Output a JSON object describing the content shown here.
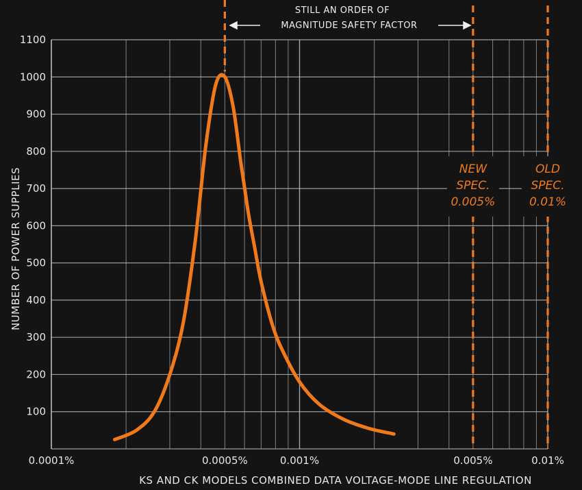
{
  "chart_data": {
    "type": "line",
    "title": "",
    "xlabel": "KS AND CK MODELS COMBINED DATA VOLTAGE-MODE LINE REGULATION",
    "ylabel": "NUMBER OF POWER SUPPLIES",
    "xscale": "log",
    "xlim": [
      0.0001,
      0.01
    ],
    "ylim": [
      0,
      1100
    ],
    "grid": true,
    "x_tick_labels": [
      "0.0001%",
      "0.0005%",
      "0.001%",
      "0.005%",
      "0.01%"
    ],
    "x_ticks": [
      0.0001,
      0.0005,
      0.001,
      0.005,
      0.01
    ],
    "y_ticks": [
      100,
      200,
      300,
      400,
      500,
      600,
      700,
      800,
      900,
      1000,
      1100
    ],
    "series": [
      {
        "color": "#f07a1a",
        "x": [
          0.00018,
          0.00022,
          0.00026,
          0.0003,
          0.00034,
          0.00038,
          0.00042,
          0.00046,
          0.0005,
          0.00054,
          0.00058,
          0.00062,
          0.00066,
          0.0007,
          0.00078,
          0.00086,
          0.001,
          0.0012,
          0.0015,
          0.0019,
          0.0024
        ],
        "y": [
          25,
          50,
          100,
          200,
          340,
          560,
          820,
          980,
          1000,
          920,
          770,
          640,
          540,
          450,
          330,
          260,
          180,
          120,
          80,
          55,
          40
        ]
      }
    ],
    "annotations": [
      {
        "text": "STILL AN ORDER OF",
        "x": 0.0012
      },
      {
        "text": "MAGNITUDE SAFETY FACTOR",
        "x": 0.0012
      }
    ],
    "reference_lines": [
      {
        "x": 0.0005,
        "color": "#f07a1a",
        "style": "dashed"
      },
      {
        "x": 0.005,
        "color": "#f07a1a",
        "style": "dashed",
        "label": [
          "NEW",
          "SPEC.",
          "0.005%"
        ]
      },
      {
        "x": 0.01,
        "color": "#f07a1a",
        "style": "dashed",
        "label": [
          "OLD",
          "SPEC.",
          "0.01%"
        ]
      }
    ]
  }
}
